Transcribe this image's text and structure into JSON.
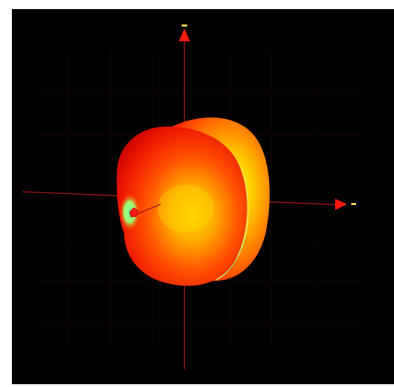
{
  "viewer": {
    "background_color": "#000000",
    "axis_color": "#b0181c",
    "arrow_color": "#ff1a10",
    "tick_marker_color": "#e6d44a"
  },
  "pattern": {
    "colormap": [
      "#c80000",
      "#ff2a00",
      "#ff6a00",
      "#ffc000",
      "#ffff40",
      "#7cff9a"
    ],
    "labels": {
      "x_axis_marker": "",
      "z_axis_marker": ""
    }
  }
}
